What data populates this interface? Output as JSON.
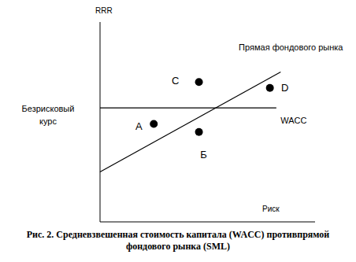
{
  "chart_data": {
    "type": "scatter",
    "title": "Рис. 2. Средневзвешенная стоимость капитала (WACC) противпрямой фондового рынка (SML)",
    "x_label": "Риск",
    "y_label": "RRR",
    "annotations": [
      {
        "text": "Безрисковый курс"
      }
    ],
    "xlim": [
      0,
      100
    ],
    "ylim": [
      0,
      100
    ],
    "tick_labels": false,
    "grid": false,
    "series": [
      {
        "name": "Прямая фондового рынка",
        "type": "line",
        "color": "#000000",
        "x": [
          0,
          84
        ],
        "values": [
          25,
          75
        ]
      },
      {
        "name": "WACC",
        "type": "line",
        "color": "#000000",
        "x": [
          0,
          82
        ],
        "values": [
          57,
          57
        ]
      },
      {
        "type": "scatter",
        "color": "#000000",
        "labels": [
          "A",
          "C",
          "Б",
          "D"
        ],
        "x": [
          25,
          46,
          46,
          79
        ],
        "values": [
          49,
          70,
          45,
          67
        ]
      }
    ]
  }
}
